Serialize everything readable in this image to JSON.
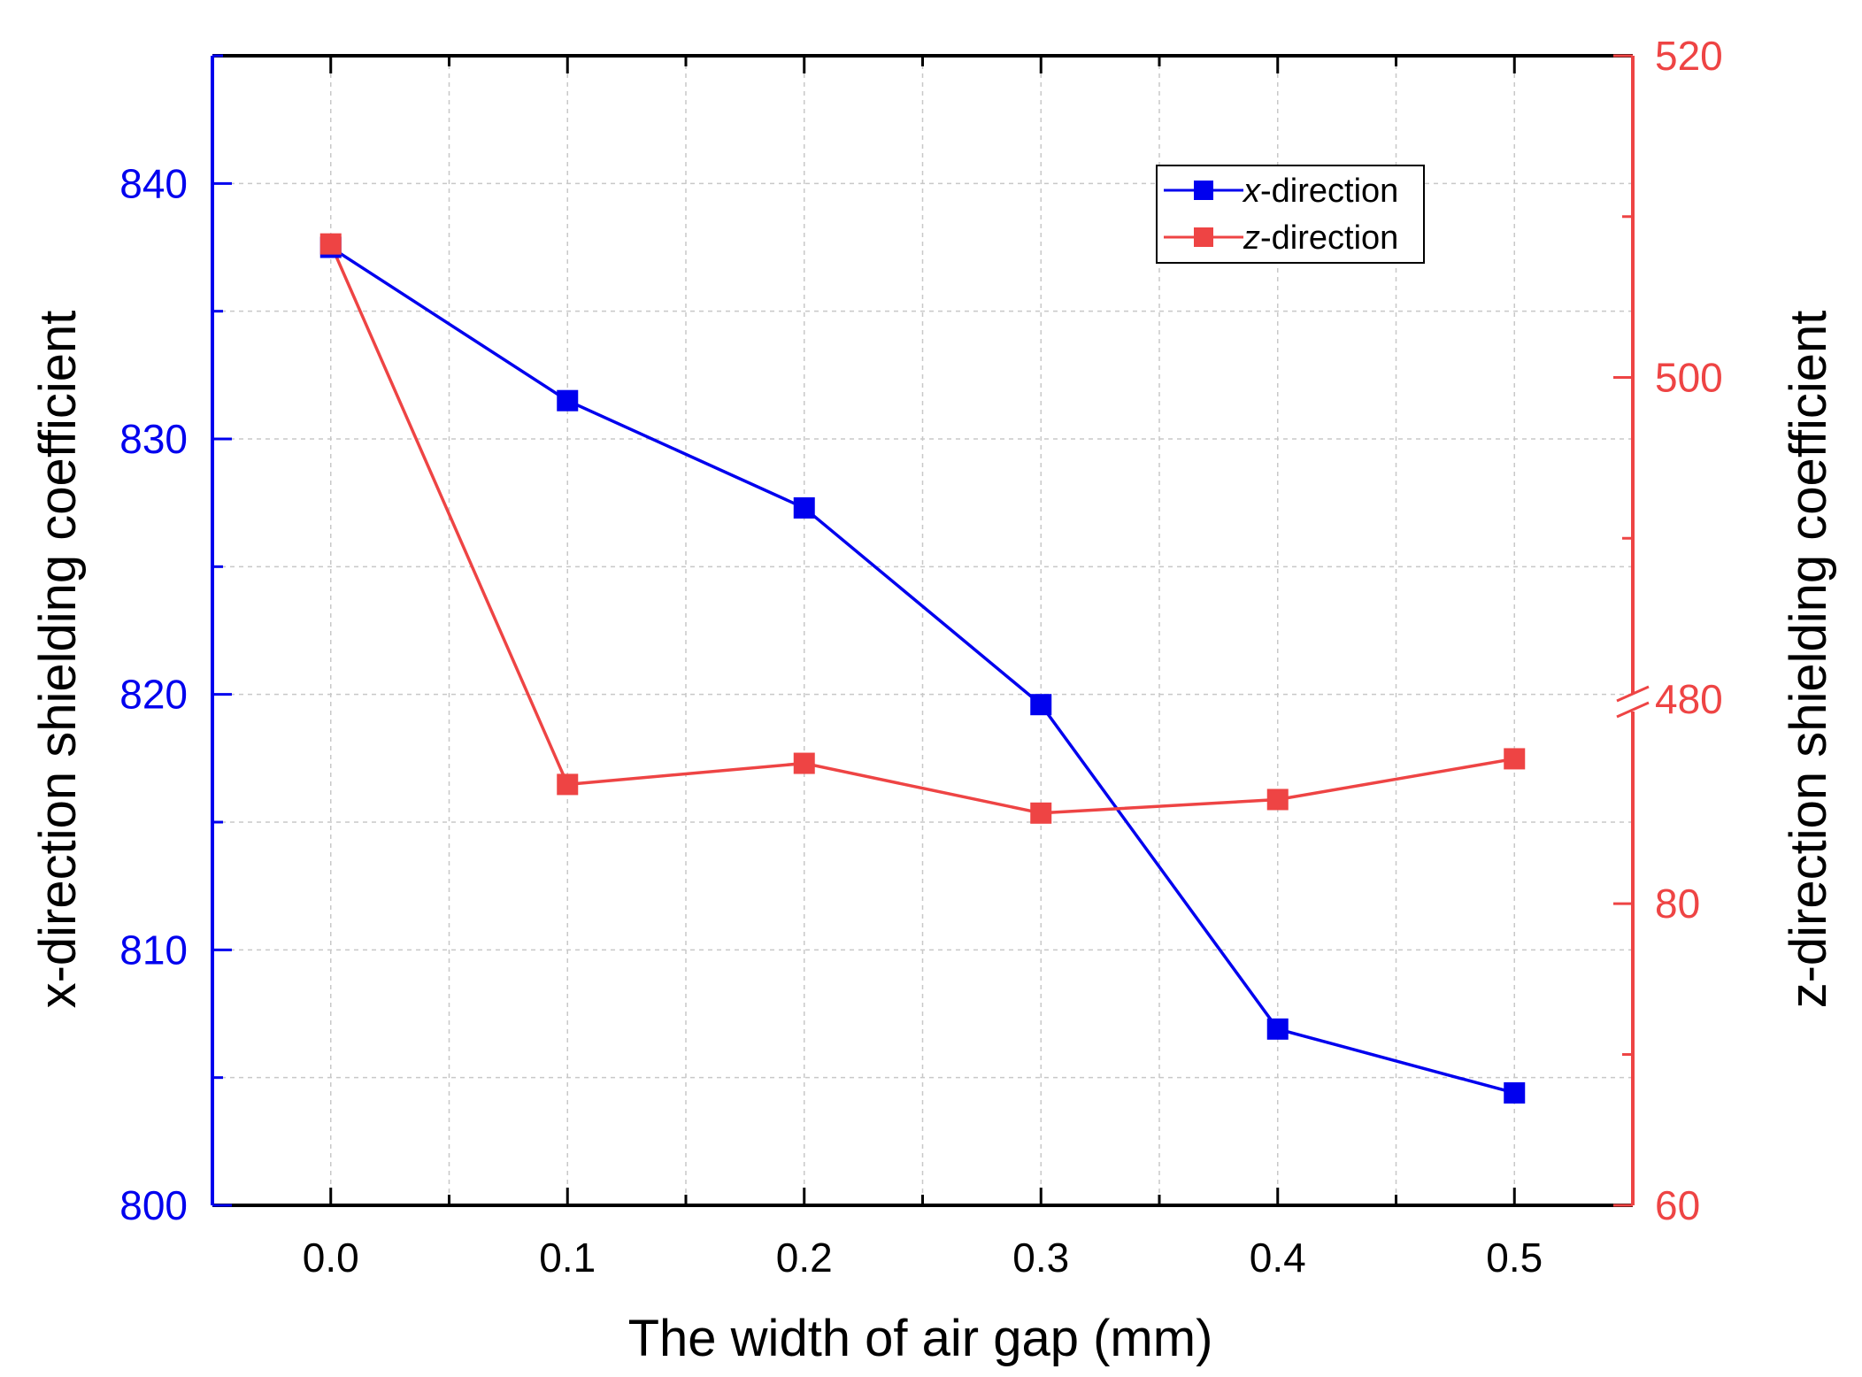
{
  "colors": {
    "x_series": "#0000ee",
    "z_series": "#ee4444",
    "axis": "#000000",
    "grid": "#c8c8c8",
    "background": "#ffffff"
  },
  "chart_data": {
    "type": "line",
    "x": [
      0.0,
      0.1,
      0.2,
      0.3,
      0.4,
      0.5
    ],
    "xlabel": "The width of air gap (mm)",
    "xlim": [
      -0.05,
      0.55
    ],
    "x_ticks": [
      0.0,
      0.1,
      0.2,
      0.3,
      0.4,
      0.5
    ],
    "x_tick_labels": [
      "0.0",
      "0.1",
      "0.2",
      "0.3",
      "0.4",
      "0.5"
    ],
    "grid": true,
    "legend_position": "top-right",
    "left_axis": {
      "label": "x-direction shielding coefficient",
      "ylim": [
        800,
        845
      ],
      "ticks": [
        800,
        810,
        820,
        830,
        840
      ],
      "tick_labels": [
        "800",
        "810",
        "820",
        "830",
        "840"
      ]
    },
    "right_axis": {
      "label": "z-direction shielding coefficient",
      "broken": true,
      "break_at": 480,
      "lower_segment_range": [
        60,
        92.5
      ],
      "upper_segment_range": [
        480,
        520
      ],
      "ticks": [
        60,
        80,
        480,
        500,
        520
      ],
      "tick_labels": [
        "60",
        "80",
        "480",
        "500",
        "520"
      ]
    },
    "series": [
      {
        "name": "x-direction",
        "legend_prefix": "x",
        "legend_suffix": "-direction",
        "axis": "left",
        "marker": "square",
        "values": [
          837.5,
          831.5,
          827.3,
          819.6,
          806.9,
          804.4
        ]
      },
      {
        "name": "z-direction",
        "legend_prefix": "z",
        "legend_suffix": "-direction",
        "axis": "right",
        "marker": "square",
        "values": [
          508.3,
          87.9,
          89.3,
          86.0,
          86.9,
          89.6
        ]
      }
    ]
  }
}
